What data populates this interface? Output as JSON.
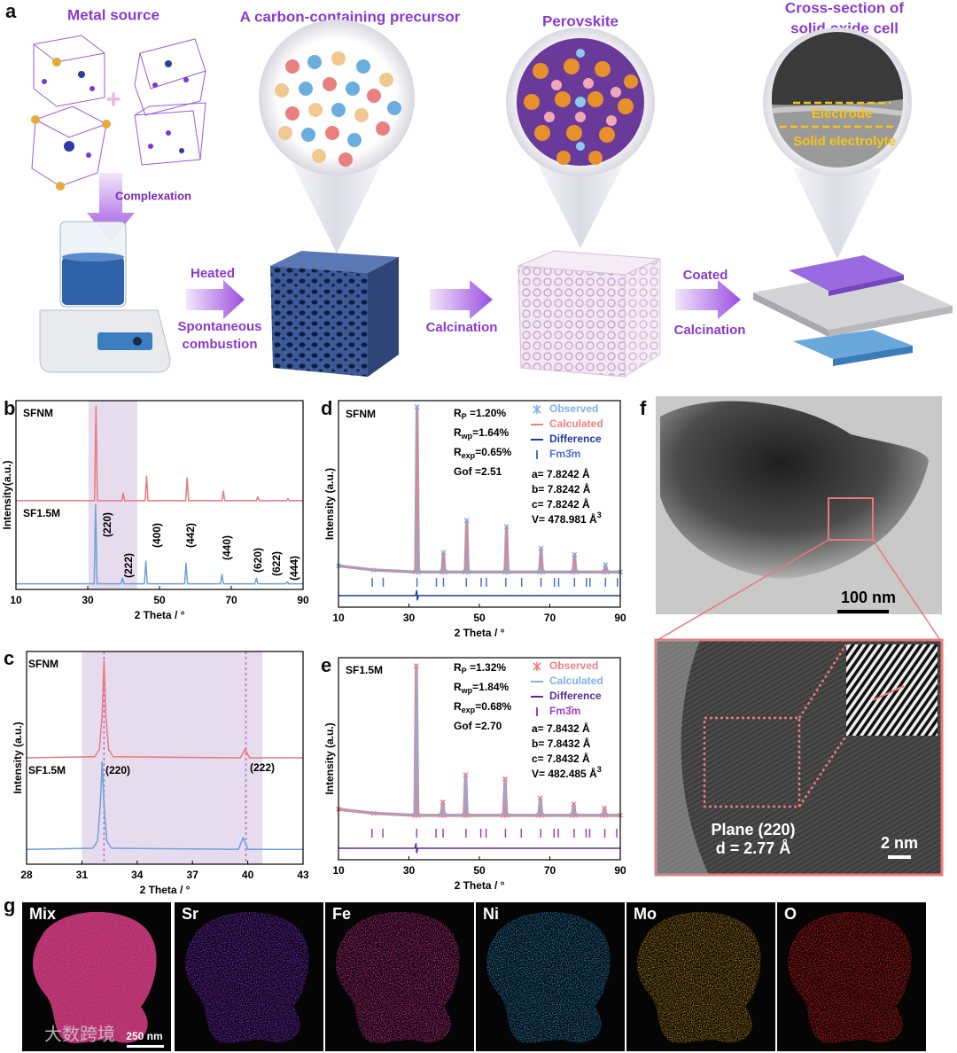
{
  "panel_a": {
    "label": "a",
    "metal_source": "Metal source",
    "precursor": "A carbon-containing precursor",
    "perovskite": "Perovskite",
    "cross_section": [
      "Cross-section of",
      "solid oxide cell"
    ],
    "electrode": "Electrode",
    "electrolyte": "Solid electrolyte",
    "complexation": "Complexation",
    "heated": "Heated",
    "combustion": [
      "Spontaneous",
      "combustion"
    ],
    "calcination_1": "Calcination",
    "coated": "Coated",
    "calcination_2": "Calcination"
  },
  "chart_data": [
    {
      "type": "line",
      "panel": "b",
      "xlabel": "2 Theta / °",
      "ylabel": "Intensity(a.u.)",
      "xlim": [
        10,
        90
      ],
      "xticks": [
        10,
        30,
        50,
        70,
        90
      ],
      "ylim": [
        0,
        100
      ],
      "highlight": [
        30.2,
        43.8
      ],
      "highlight_color": "#e6dced",
      "series": [
        {
          "name": "SFNM",
          "color": "#e8797b",
          "x": [
            10,
            31.9,
            32.3,
            32.7,
            39.5,
            39.9,
            40.3,
            46.0,
            46.4,
            46.8,
            57.3,
            57.7,
            58.1,
            67.4,
            67.8,
            68.2,
            77.0,
            77.4,
            77.8,
            85.4,
            85.8,
            86.2,
            90
          ],
          "values": [
            47,
            47,
            97,
            47,
            47,
            51,
            47,
            47,
            60,
            47,
            47,
            59,
            47,
            47,
            52,
            47,
            47,
            49,
            47,
            47,
            48,
            47,
            47
          ]
        },
        {
          "name": "SF1.5M",
          "color": "#6fa0d8",
          "x": [
            10,
            31.8,
            32.2,
            32.6,
            39.3,
            39.7,
            40.1,
            45.8,
            46.2,
            46.6,
            57.0,
            57.4,
            57.8,
            67.0,
            67.4,
            67.8,
            76.6,
            77.0,
            77.4,
            85.2,
            85.6,
            86.0,
            90
          ],
          "values": [
            3,
            3,
            45,
            3,
            3,
            6,
            3,
            3,
            15,
            3,
            3,
            14,
            3,
            3,
            8,
            3,
            3,
            6,
            3,
            3,
            4,
            3,
            3
          ]
        }
      ],
      "peak_labels": [
        "(220)",
        "(222)",
        "(400)",
        "(442)",
        "(440)",
        "(620)",
        "(622)",
        "(444)"
      ]
    },
    {
      "type": "line",
      "panel": "c",
      "xlabel": "2 Theta / °",
      "ylabel": "Intensity (a.u.)",
      "xlim": [
        28,
        43
      ],
      "xticks": [
        28,
        31,
        34,
        37,
        40,
        43
      ],
      "ylim": [
        0,
        100
      ],
      "highlight": [
        31.0,
        40.8
      ],
      "highlight_color": "#e6dced",
      "reference_lines": [
        32.2,
        39.9
      ],
      "reference_color": "#b070d0",
      "series": [
        {
          "name": "SFNM",
          "color": "#e8797b",
          "x": [
            28,
            31.7,
            31.95,
            32.1,
            32.2,
            32.3,
            32.45,
            32.7,
            39.6,
            39.85,
            40.1,
            43
          ],
          "values": [
            50,
            50.5,
            54,
            70,
            95.8,
            70,
            54,
            50.5,
            50,
            54,
            50,
            50
          ]
        },
        {
          "name": "SF1.5M",
          "color": "#6fa0d8",
          "x": [
            28,
            31.6,
            31.85,
            32.0,
            32.1,
            32.2,
            32.35,
            32.6,
            39.5,
            39.75,
            40.0,
            43
          ],
          "values": [
            7,
            7.5,
            11,
            28,
            48,
            28,
            11,
            7.5,
            7,
            12.5,
            7,
            7
          ]
        }
      ],
      "peak_labels": [
        "(220)",
        "(222)"
      ]
    },
    {
      "type": "refinement",
      "panel": "d",
      "sample": "SFNM",
      "xlabel": "2 Theta / °",
      "ylabel": "Intensity (a.u.)",
      "xlim": [
        10,
        90
      ],
      "xticks": [
        10,
        30,
        50,
        70,
        90
      ],
      "ylim": [
        0,
        100
      ],
      "stats": [
        {
          "symbol": "R",
          "sub": "P",
          "text": " =1.20%"
        },
        {
          "symbol": "R",
          "sub": "wp",
          "text": "=1.64%"
        },
        {
          "symbol": "R",
          "sub": "exp",
          "text": "=0.65%"
        },
        {
          "symbol": "Gof =2.51",
          "sub": "",
          "text": ""
        }
      ],
      "lattice": [
        {
          "text": "a= 7.8242 Å",
          "sup": ""
        },
        {
          "text": "b= 7.8242 Å",
          "sup": ""
        },
        {
          "text": "c= 7.8242 Å",
          "sup": ""
        },
        {
          "text": "V= 478.981 Å",
          "sup": "3"
        }
      ],
      "series": [
        {
          "name": "Observed",
          "color": "#7fb2e5",
          "marker": "x",
          "x": [
            10,
            20,
            31.9,
            32.3,
            32.7,
            39.4,
            39.8,
            40.2,
            46.0,
            46.4,
            46.8,
            57.3,
            57.7,
            58.1,
            67.1,
            67.5,
            67.9,
            76.6,
            77.0,
            77.4,
            85.4,
            85.8,
            86.2,
            90
          ],
          "values": [
            20,
            18,
            17,
            97,
            17,
            17,
            26.5,
            17,
            17,
            42,
            17,
            17,
            39,
            17,
            17,
            28.5,
            17,
            17,
            25.5,
            17,
            17,
            20.5,
            17,
            17
          ]
        },
        {
          "name": "Calculated",
          "color": "#ef7f7f",
          "x": [
            10,
            20,
            31.9,
            32.3,
            32.7,
            39.4,
            39.8,
            40.2,
            46.0,
            46.4,
            46.8,
            57.3,
            57.7,
            58.1,
            67.1,
            67.5,
            67.9,
            76.6,
            77.0,
            77.4,
            85.4,
            85.8,
            86.2,
            90
          ],
          "values": [
            20,
            18,
            17,
            96.5,
            17,
            17,
            26,
            17,
            17,
            41.6,
            17,
            17,
            38.6,
            17,
            17,
            28,
            17,
            17,
            25,
            17,
            17,
            20,
            17,
            17
          ]
        },
        {
          "name": "Difference",
          "color": "#1c3b9a",
          "x": [
            10,
            31.9,
            32.2,
            32.4,
            32.7,
            90
          ],
          "values": [
            5.6,
            5.6,
            8,
            3.5,
            5.6,
            5.6
          ]
        },
        {
          "name": "Fm3̄m",
          "color": "#4a6fd0",
          "x": [
            19.6,
            22.7,
            32.3,
            37.8,
            39.8,
            46.3,
            50.5,
            52.0,
            57.5,
            62.0,
            67.5,
            71.3,
            72.5,
            77.0,
            80.4,
            81.4,
            85.8,
            89.2
          ]
        }
      ]
    },
    {
      "type": "refinement",
      "panel": "e",
      "sample": "SF1.5M",
      "xlabel": "2 Theta / °",
      "ylabel": "Intensity (a.u.)",
      "xlim": [
        10,
        90
      ],
      "xticks": [
        10,
        30,
        50,
        70,
        90
      ],
      "ylim": [
        0,
        100
      ],
      "stats": [
        {
          "symbol": "R",
          "sub": "P",
          "text": " =1.32%"
        },
        {
          "symbol": "R",
          "sub": "wp",
          "text": "=1.84%"
        },
        {
          "symbol": "R",
          "sub": "exp",
          "text": "=0.68%"
        },
        {
          "symbol": "Gof =2.70",
          "sub": "",
          "text": ""
        }
      ],
      "lattice": [
        {
          "text": "a= 7.8432 Å",
          "sup": ""
        },
        {
          "text": "b= 7.8432 Å",
          "sup": ""
        },
        {
          "text": "c= 7.8432 Å",
          "sup": ""
        },
        {
          "text": "V= 482.485 Å",
          "sup": "3"
        }
      ],
      "series": [
        {
          "name": "Observed",
          "color": "#ef7f7f",
          "marker": "x",
          "x": [
            10,
            20,
            31.7,
            32.1,
            32.5,
            39.2,
            39.6,
            40.0,
            45.7,
            46.1,
            46.5,
            56.9,
            57.3,
            57.7,
            66.9,
            67.3,
            67.7,
            76.4,
            76.8,
            77.2,
            85.1,
            85.5,
            85.9,
            90
          ],
          "values": [
            25,
            23,
            22,
            96,
            22,
            22,
            28.5,
            22,
            22,
            42,
            22,
            22,
            40,
            22,
            22,
            30.5,
            22,
            22,
            27.5,
            22,
            22,
            25.5,
            22,
            22
          ]
        },
        {
          "name": "Calculated",
          "color": "#7fb2e5",
          "x": [
            10,
            20,
            31.7,
            32.1,
            32.5,
            39.2,
            39.6,
            40.0,
            45.7,
            46.1,
            46.5,
            56.9,
            57.3,
            57.7,
            66.9,
            67.3,
            67.7,
            76.4,
            76.8,
            77.2,
            85.1,
            85.5,
            85.9,
            90
          ],
          "values": [
            25,
            23,
            22,
            95.6,
            22,
            22,
            28,
            22,
            22,
            41.7,
            22,
            22,
            39.5,
            22,
            22,
            30,
            22,
            22,
            27,
            22,
            22,
            25,
            22,
            22
          ]
        },
        {
          "name": "Difference",
          "color": "#5a2d91",
          "x": [
            10,
            31.7,
            32.0,
            32.2,
            32.5,
            90
          ],
          "values": [
            5.7,
            5.7,
            8,
            3.5,
            5.7,
            5.7
          ]
        },
        {
          "name": "Fm3̄m",
          "color": "#a040c0",
          "x": [
            19.5,
            22.6,
            32.2,
            37.7,
            39.7,
            46.2,
            50.4,
            51.9,
            57.4,
            61.9,
            67.4,
            71.2,
            72.4,
            76.9,
            80.3,
            81.3,
            85.6,
            89.0
          ]
        }
      ]
    }
  ],
  "panel_f": {
    "label": "f",
    "scale_1": "100 nm",
    "plane": "Plane (220)",
    "d_spacing": "d = 2.77 Å",
    "scale_2": "2 nm"
  },
  "panel_g": {
    "label": "g",
    "maps": [
      {
        "label": "Mix",
        "color": "#e0408a"
      },
      {
        "label": "Sr",
        "color": "#8a2be2"
      },
      {
        "label": "Fe",
        "color": "#e0309a"
      },
      {
        "label": "Ni",
        "color": "#2a8ac8"
      },
      {
        "label": "Mo",
        "color": "#c8901a"
      },
      {
        "label": "O",
        "color": "#e81a1a"
      }
    ],
    "scale": "250 nm",
    "watermark": "大数跨境"
  }
}
